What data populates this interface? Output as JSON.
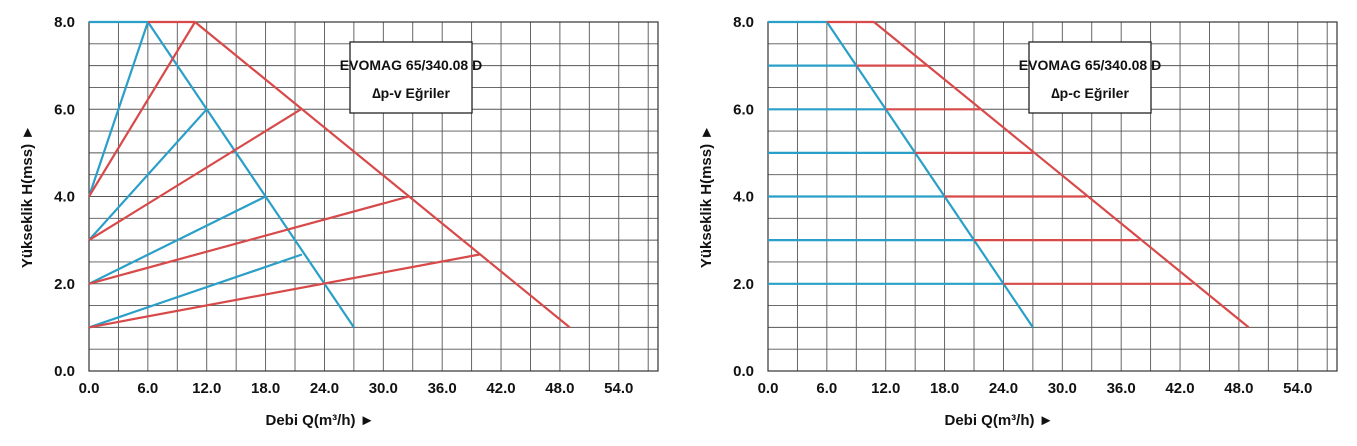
{
  "charts": [
    {
      "id": "left",
      "box_title": "EVOMAG 65/340.08 D",
      "box_subtitle": "∆p-v Eğriler",
      "chart_data": {
        "type": "line",
        "xlabel": "Debi Q(m³/h) ►",
        "ylabel": "Yükseklik H(mss) ►",
        "xlim": [
          0,
          58
        ],
        "ylim": [
          0,
          8
        ],
        "x_ticks": [
          "0.0",
          "6.0",
          "12.0",
          "18.0",
          "24.0",
          "30.0",
          "36.0",
          "42.0",
          "48.0",
          "54.0"
        ],
        "x_tick_values": [
          0,
          6,
          12,
          18,
          24,
          30,
          36,
          42,
          48,
          54
        ],
        "y_ticks": [
          "0.0",
          "2.0",
          "4.0",
          "6.0",
          "8.0"
        ],
        "y_tick_values": [
          0,
          2,
          4,
          6,
          8
        ],
        "grid": true,
        "colors": {
          "blue": "#2a9fc7",
          "red": "#d84a4a"
        },
        "series": [
          {
            "color": "blue",
            "points": [
              [
                0,
                8
              ],
              [
                6,
                8
              ],
              [
                27,
                1
              ]
            ]
          },
          {
            "color": "blue",
            "points": [
              [
                0,
                4
              ],
              [
                6,
                8
              ]
            ]
          },
          {
            "color": "blue",
            "points": [
              [
                0,
                3
              ],
              [
                12,
                6
              ]
            ]
          },
          {
            "color": "blue",
            "points": [
              [
                0,
                2
              ],
              [
                18,
                4
              ]
            ]
          },
          {
            "color": "blue",
            "points": [
              [
                0,
                1
              ],
              [
                21.7,
                2.67
              ]
            ]
          },
          {
            "color": "red",
            "points": [
              [
                6,
                8
              ],
              [
                10.8,
                8
              ],
              [
                49,
                1
              ]
            ]
          },
          {
            "color": "red",
            "points": [
              [
                0,
                4
              ],
              [
                10.8,
                8
              ]
            ]
          },
          {
            "color": "red",
            "points": [
              [
                0,
                3
              ],
              [
                21.6,
                6
              ]
            ]
          },
          {
            "color": "red",
            "points": [
              [
                0,
                2
              ],
              [
                32.6,
                4
              ]
            ]
          },
          {
            "color": "red",
            "points": [
              [
                0,
                1
              ],
              [
                39.8,
                2.67
              ]
            ]
          }
        ]
      }
    },
    {
      "id": "right",
      "box_title": "EVOMAG 65/340.08 D",
      "box_subtitle": "∆p-c Eğriler",
      "chart_data": {
        "type": "line",
        "xlabel": "Debi Q(m³/h) ►",
        "ylabel": "Yükseklik H(mss) ►",
        "xlim": [
          0,
          58
        ],
        "ylim": [
          0,
          8
        ],
        "x_ticks": [
          "0.0",
          "6.0",
          "12.0",
          "18.0",
          "24.0",
          "30.0",
          "36.0",
          "42.0",
          "48.0",
          "54.0"
        ],
        "x_tick_values": [
          0,
          6,
          12,
          18,
          24,
          30,
          36,
          42,
          48,
          54
        ],
        "y_ticks": [
          "0.0",
          "2.0",
          "4.0",
          "6.0",
          "8.0"
        ],
        "y_tick_values": [
          0,
          2,
          4,
          6,
          8
        ],
        "grid": true,
        "colors": {
          "blue": "#2a9fc7",
          "red": "#d84a4a"
        },
        "series": [
          {
            "color": "blue",
            "points": [
              [
                0,
                8
              ],
              [
                6,
                8
              ],
              [
                27,
                1
              ]
            ]
          },
          {
            "color": "blue",
            "points": [
              [
                0,
                7
              ],
              [
                9,
                7
              ]
            ]
          },
          {
            "color": "blue",
            "points": [
              [
                0,
                6
              ],
              [
                12,
                6
              ]
            ]
          },
          {
            "color": "blue",
            "points": [
              [
                0,
                5
              ],
              [
                15,
                5
              ]
            ]
          },
          {
            "color": "blue",
            "points": [
              [
                0,
                4
              ],
              [
                18,
                4
              ]
            ]
          },
          {
            "color": "blue",
            "points": [
              [
                0,
                3
              ],
              [
                21,
                3
              ]
            ]
          },
          {
            "color": "blue",
            "points": [
              [
                0,
                2
              ],
              [
                24,
                2
              ]
            ]
          },
          {
            "color": "red",
            "points": [
              [
                6,
                8
              ],
              [
                10.8,
                8
              ],
              [
                49,
                1
              ]
            ]
          },
          {
            "color": "red",
            "points": [
              [
                9,
                7
              ],
              [
                16.2,
                7
              ]
            ]
          },
          {
            "color": "red",
            "points": [
              [
                12,
                6
              ],
              [
                21.6,
                6
              ]
            ]
          },
          {
            "color": "red",
            "points": [
              [
                15,
                5
              ],
              [
                27,
                5
              ]
            ]
          },
          {
            "color": "red",
            "points": [
              [
                18,
                4
              ],
              [
                32.4,
                4
              ]
            ]
          },
          {
            "color": "red",
            "points": [
              [
                21,
                3
              ],
              [
                37.8,
                3
              ]
            ]
          },
          {
            "color": "red",
            "points": [
              [
                24,
                2
              ],
              [
                43.2,
                2
              ]
            ]
          }
        ]
      }
    }
  ]
}
